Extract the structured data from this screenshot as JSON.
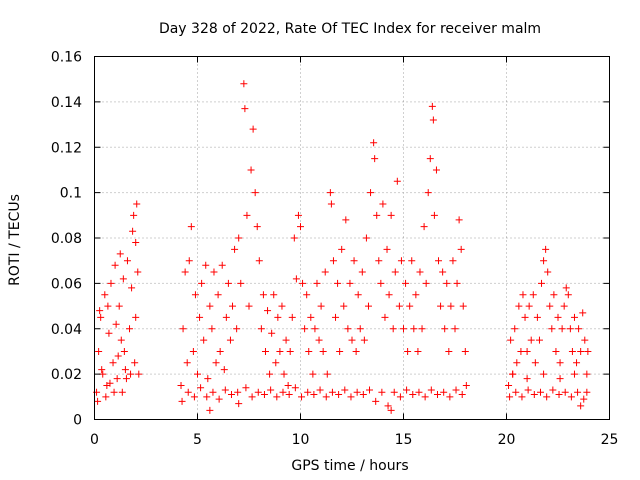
{
  "chart_data": {
    "type": "scatter",
    "title": "Day 328 of 2022, Rate Of TEC Index for receiver malm",
    "xlabel": "GPS time / hours",
    "ylabel": "ROTI / TECUs",
    "xlim": [
      0,
      25
    ],
    "ylim": [
      0,
      0.16
    ],
    "xticks": [
      0,
      5,
      10,
      15,
      20,
      25
    ],
    "yticks": [
      0,
      0.02,
      0.04,
      0.06,
      0.08,
      0.1,
      0.12,
      0.14,
      0.16
    ],
    "xtick_labels": [
      "0",
      "5",
      "10",
      "15",
      "20",
      "25"
    ],
    "ytick_labels": [
      "0",
      "0.02",
      "0.04",
      "0.06",
      "0.08",
      "0.1",
      "0.12",
      "0.14",
      "0.16"
    ],
    "grid": true,
    "marker": "+",
    "color": "#ff0000",
    "series": [
      {
        "points": [
          [
            0.1,
            0.012
          ],
          [
            0.2,
            0.03
          ],
          [
            0.3,
            0.045
          ],
          [
            0.4,
            0.02
          ],
          [
            0.5,
            0.055
          ],
          [
            0.6,
            0.015
          ],
          [
            0.7,
            0.038
          ],
          [
            0.8,
            0.06
          ],
          [
            0.9,
            0.025
          ],
          [
            1.0,
            0.068
          ],
          [
            1.1,
            0.018
          ],
          [
            1.2,
            0.05
          ],
          [
            1.3,
            0.035
          ],
          [
            1.4,
            0.062
          ],
          [
            1.5,
            0.022
          ],
          [
            1.6,
            0.07
          ],
          [
            1.7,
            0.04
          ],
          [
            1.8,
            0.058
          ],
          [
            1.9,
            0.09
          ],
          [
            2.0,
            0.078
          ],
          [
            2.05,
            0.095
          ],
          [
            2.1,
            0.065
          ],
          [
            2.15,
            0.02
          ],
          [
            0.15,
            0.008
          ],
          [
            0.35,
            0.022
          ],
          [
            0.55,
            0.01
          ],
          [
            0.75,
            0.016
          ],
          [
            0.95,
            0.012
          ],
          [
            1.15,
            0.028
          ],
          [
            1.35,
            0.012
          ],
          [
            1.55,
            0.018
          ],
          [
            1.75,
            0.02
          ],
          [
            1.95,
            0.025
          ],
          [
            0.25,
            0.048
          ],
          [
            0.65,
            0.05
          ],
          [
            1.05,
            0.042
          ],
          [
            1.25,
            0.073
          ],
          [
            1.45,
            0.03
          ],
          [
            1.85,
            0.083
          ],
          [
            2.0,
            0.045
          ],
          [
            4.2,
            0.015
          ],
          [
            4.3,
            0.04
          ],
          [
            4.4,
            0.065
          ],
          [
            4.5,
            0.025
          ],
          [
            4.6,
            0.07
          ],
          [
            4.7,
            0.085
          ],
          [
            4.8,
            0.03
          ],
          [
            4.9,
            0.055
          ],
          [
            5.0,
            0.02
          ],
          [
            5.1,
            0.045
          ],
          [
            5.2,
            0.06
          ],
          [
            5.3,
            0.035
          ],
          [
            5.4,
            0.068
          ],
          [
            5.5,
            0.018
          ],
          [
            5.6,
            0.05
          ],
          [
            5.7,
            0.04
          ],
          [
            5.8,
            0.065
          ],
          [
            5.9,
            0.025
          ],
          [
            6.0,
            0.055
          ],
          [
            6.1,
            0.03
          ],
          [
            6.2,
            0.068
          ],
          [
            6.3,
            0.022
          ],
          [
            6.4,
            0.045
          ],
          [
            6.5,
            0.06
          ],
          [
            6.6,
            0.035
          ],
          [
            6.7,
            0.05
          ],
          [
            6.8,
            0.075
          ],
          [
            6.9,
            0.04
          ],
          [
            7.0,
            0.08
          ],
          [
            7.1,
            0.06
          ],
          [
            7.25,
            0.148
          ],
          [
            7.3,
            0.137
          ],
          [
            7.4,
            0.09
          ],
          [
            7.5,
            0.05
          ],
          [
            7.6,
            0.11
          ],
          [
            7.7,
            0.128
          ],
          [
            7.8,
            0.1
          ],
          [
            7.9,
            0.085
          ],
          [
            8.0,
            0.07
          ],
          [
            8.1,
            0.04
          ],
          [
            8.2,
            0.055
          ],
          [
            8.3,
            0.03
          ],
          [
            8.4,
            0.048
          ],
          [
            8.5,
            0.02
          ],
          [
            8.6,
            0.038
          ],
          [
            8.7,
            0.055
          ],
          [
            8.8,
            0.025
          ],
          [
            8.9,
            0.045
          ],
          [
            9.0,
            0.03
          ],
          [
            9.1,
            0.05
          ],
          [
            9.2,
            0.02
          ],
          [
            9.3,
            0.035
          ],
          [
            9.4,
            0.015
          ],
          [
            9.5,
            0.03
          ],
          [
            9.6,
            0.045
          ],
          [
            9.7,
            0.08
          ],
          [
            9.8,
            0.062
          ],
          [
            9.9,
            0.09
          ],
          [
            10.0,
            0.085
          ],
          [
            10.1,
            0.06
          ],
          [
            10.2,
            0.04
          ],
          [
            10.3,
            0.055
          ],
          [
            10.4,
            0.03
          ],
          [
            10.5,
            0.045
          ],
          [
            10.6,
            0.02
          ],
          [
            10.7,
            0.04
          ],
          [
            10.8,
            0.06
          ],
          [
            10.9,
            0.035
          ],
          [
            11.0,
            0.05
          ],
          [
            11.1,
            0.03
          ],
          [
            11.2,
            0.065
          ],
          [
            11.3,
            0.02
          ],
          [
            11.45,
            0.1
          ],
          [
            11.5,
            0.095
          ],
          [
            11.6,
            0.07
          ],
          [
            11.7,
            0.045
          ],
          [
            11.8,
            0.06
          ],
          [
            11.9,
            0.03
          ],
          [
            12.0,
            0.075
          ],
          [
            12.1,
            0.05
          ],
          [
            12.2,
            0.088
          ],
          [
            12.3,
            0.04
          ],
          [
            12.4,
            0.06
          ],
          [
            12.5,
            0.035
          ],
          [
            12.6,
            0.07
          ],
          [
            12.7,
            0.03
          ],
          [
            12.8,
            0.055
          ],
          [
            12.9,
            0.04
          ],
          [
            13.0,
            0.065
          ],
          [
            13.1,
            0.035
          ],
          [
            13.2,
            0.08
          ],
          [
            13.3,
            0.05
          ],
          [
            13.4,
            0.1
          ],
          [
            13.55,
            0.122
          ],
          [
            13.6,
            0.115
          ],
          [
            13.7,
            0.09
          ],
          [
            13.8,
            0.07
          ],
          [
            13.9,
            0.06
          ],
          [
            14.0,
            0.095
          ],
          [
            14.1,
            0.045
          ],
          [
            14.2,
            0.075
          ],
          [
            14.3,
            0.055
          ],
          [
            14.4,
            0.09
          ],
          [
            14.5,
            0.04
          ],
          [
            14.6,
            0.065
          ],
          [
            14.7,
            0.105
          ],
          [
            14.8,
            0.05
          ],
          [
            14.9,
            0.07
          ],
          [
            15.0,
            0.04
          ],
          [
            15.1,
            0.06
          ],
          [
            15.2,
            0.03
          ],
          [
            15.3,
            0.05
          ],
          [
            15.4,
            0.07
          ],
          [
            15.5,
            0.04
          ],
          [
            15.6,
            0.055
          ],
          [
            15.7,
            0.03
          ],
          [
            15.8,
            0.065
          ],
          [
            15.9,
            0.04
          ],
          [
            16.0,
            0.085
          ],
          [
            16.1,
            0.06
          ],
          [
            16.2,
            0.1
          ],
          [
            16.3,
            0.115
          ],
          [
            16.4,
            0.138
          ],
          [
            16.45,
            0.132
          ],
          [
            16.5,
            0.09
          ],
          [
            16.6,
            0.11
          ],
          [
            16.7,
            0.07
          ],
          [
            16.8,
            0.05
          ],
          [
            16.9,
            0.065
          ],
          [
            17.0,
            0.04
          ],
          [
            17.1,
            0.06
          ],
          [
            17.2,
            0.03
          ],
          [
            17.3,
            0.05
          ],
          [
            17.4,
            0.07
          ],
          [
            17.5,
            0.04
          ],
          [
            17.6,
            0.06
          ],
          [
            17.7,
            0.088
          ],
          [
            17.8,
            0.075
          ],
          [
            17.9,
            0.05
          ],
          [
            18.0,
            0.03
          ],
          [
            4.25,
            0.008
          ],
          [
            4.55,
            0.012
          ],
          [
            4.85,
            0.01
          ],
          [
            5.15,
            0.014
          ],
          [
            5.45,
            0.01
          ],
          [
            5.75,
            0.012
          ],
          [
            6.05,
            0.009
          ],
          [
            6.35,
            0.013
          ],
          [
            6.65,
            0.011
          ],
          [
            6.95,
            0.012
          ],
          [
            7.35,
            0.014
          ],
          [
            7.65,
            0.01
          ],
          [
            7.95,
            0.012
          ],
          [
            8.25,
            0.011
          ],
          [
            8.55,
            0.013
          ],
          [
            8.85,
            0.01
          ],
          [
            9.15,
            0.012
          ],
          [
            9.45,
            0.011
          ],
          [
            9.75,
            0.014
          ],
          [
            10.05,
            0.01
          ],
          [
            10.35,
            0.012
          ],
          [
            10.65,
            0.011
          ],
          [
            10.95,
            0.013
          ],
          [
            11.25,
            0.01
          ],
          [
            11.55,
            0.012
          ],
          [
            11.85,
            0.011
          ],
          [
            12.15,
            0.013
          ],
          [
            12.45,
            0.01
          ],
          [
            12.75,
            0.012
          ],
          [
            13.05,
            0.011
          ],
          [
            13.35,
            0.013
          ],
          [
            13.65,
            0.008
          ],
          [
            13.95,
            0.012
          ],
          [
            14.25,
            0.006
          ],
          [
            14.55,
            0.012
          ],
          [
            14.85,
            0.01
          ],
          [
            15.15,
            0.013
          ],
          [
            15.45,
            0.011
          ],
          [
            15.75,
            0.012
          ],
          [
            16.05,
            0.01
          ],
          [
            16.35,
            0.013
          ],
          [
            16.65,
            0.011
          ],
          [
            16.95,
            0.012
          ],
          [
            17.25,
            0.01
          ],
          [
            17.55,
            0.013
          ],
          [
            17.85,
            0.011
          ],
          [
            18.05,
            0.015
          ],
          [
            5.6,
            0.004
          ],
          [
            7.0,
            0.007
          ],
          [
            14.4,
            0.004
          ],
          [
            20.1,
            0.015
          ],
          [
            20.2,
            0.035
          ],
          [
            20.3,
            0.02
          ],
          [
            20.4,
            0.04
          ],
          [
            20.5,
            0.025
          ],
          [
            20.6,
            0.05
          ],
          [
            20.7,
            0.03
          ],
          [
            20.8,
            0.055
          ],
          [
            20.9,
            0.045
          ],
          [
            21.0,
            0.03
          ],
          [
            21.1,
            0.05
          ],
          [
            21.2,
            0.035
          ],
          [
            21.3,
            0.055
          ],
          [
            21.4,
            0.025
          ],
          [
            21.5,
            0.045
          ],
          [
            21.6,
            0.035
          ],
          [
            21.7,
            0.06
          ],
          [
            21.8,
            0.07
          ],
          [
            21.9,
            0.075
          ],
          [
            22.0,
            0.065
          ],
          [
            22.1,
            0.05
          ],
          [
            22.2,
            0.04
          ],
          [
            22.3,
            0.055
          ],
          [
            22.4,
            0.03
          ],
          [
            22.5,
            0.045
          ],
          [
            22.6,
            0.025
          ],
          [
            22.7,
            0.04
          ],
          [
            22.8,
            0.05
          ],
          [
            22.9,
            0.058
          ],
          [
            23.0,
            0.055
          ],
          [
            23.1,
            0.04
          ],
          [
            23.2,
            0.03
          ],
          [
            23.3,
            0.045
          ],
          [
            23.4,
            0.025
          ],
          [
            23.5,
            0.04
          ],
          [
            23.6,
            0.03
          ],
          [
            23.7,
            0.047
          ],
          [
            23.8,
            0.035
          ],
          [
            23.9,
            0.02
          ],
          [
            23.95,
            0.03
          ],
          [
            20.15,
            0.01
          ],
          [
            20.45,
            0.012
          ],
          [
            20.75,
            0.01
          ],
          [
            21.05,
            0.013
          ],
          [
            21.35,
            0.011
          ],
          [
            21.65,
            0.012
          ],
          [
            21.95,
            0.01
          ],
          [
            22.25,
            0.013
          ],
          [
            22.55,
            0.011
          ],
          [
            22.85,
            0.012
          ],
          [
            23.15,
            0.01
          ],
          [
            23.45,
            0.012
          ],
          [
            23.75,
            0.009
          ],
          [
            23.9,
            0.012
          ],
          [
            20.3,
            0.02
          ],
          [
            21.0,
            0.018
          ],
          [
            21.8,
            0.02
          ],
          [
            22.6,
            0.018
          ],
          [
            23.3,
            0.02
          ],
          [
            23.6,
            0.006
          ]
        ]
      }
    ]
  }
}
